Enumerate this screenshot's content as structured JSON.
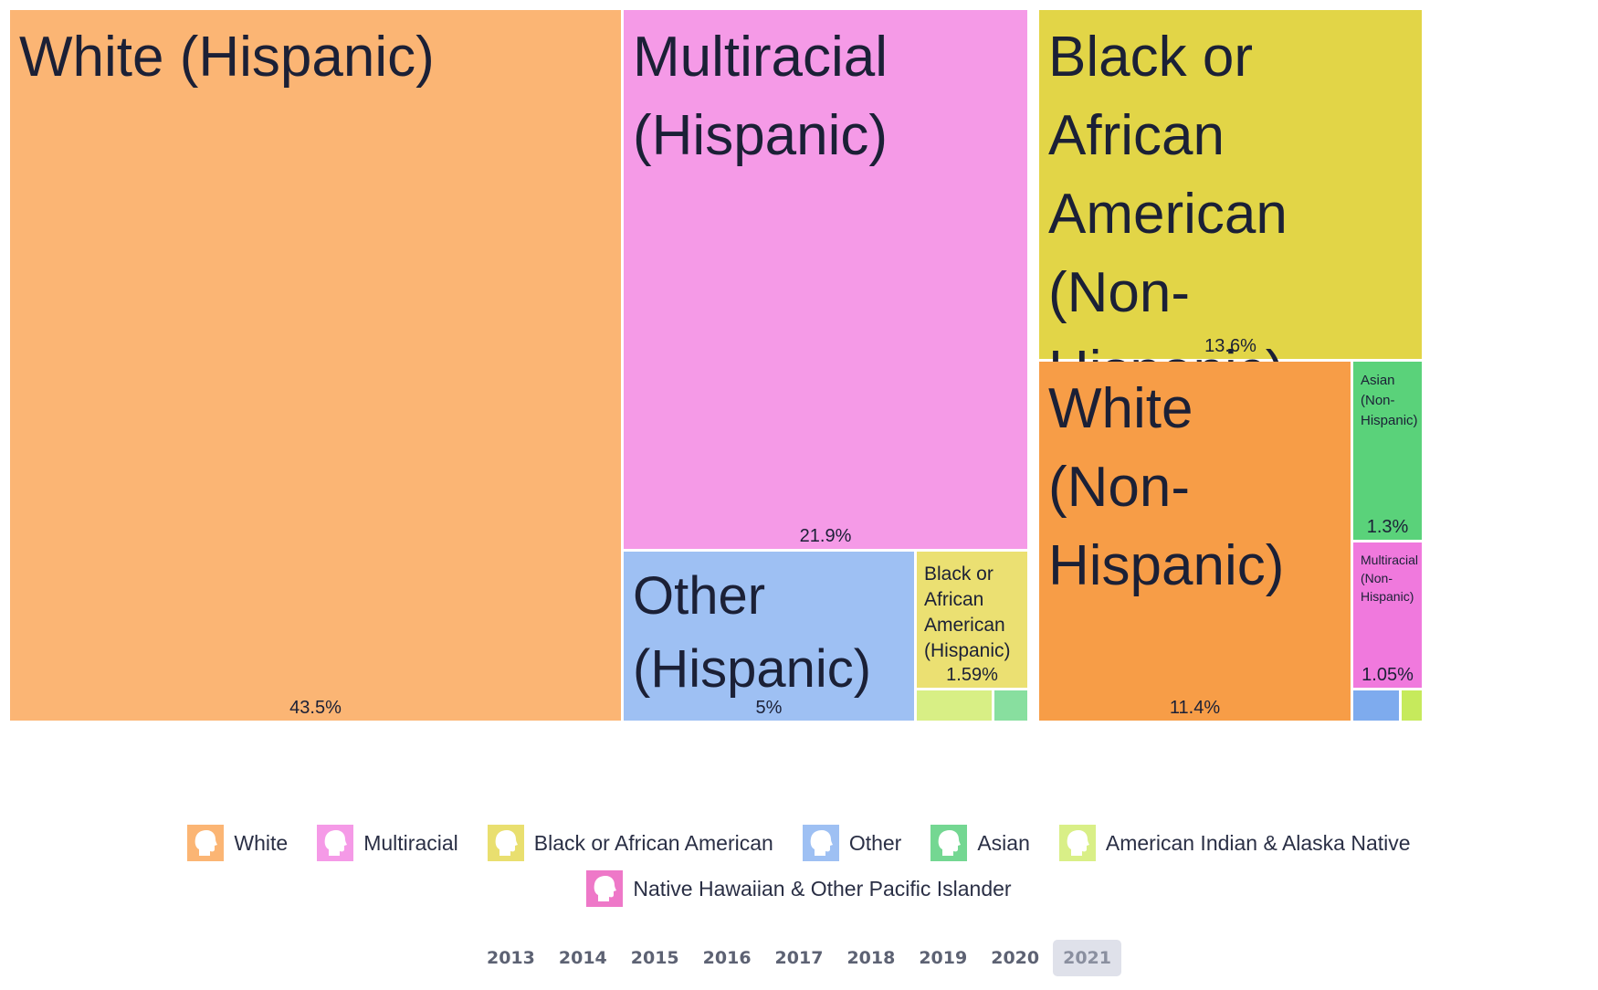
{
  "chart_data": {
    "type": "treemap",
    "unit": "%",
    "groups": [
      {
        "name": "Hispanic",
        "tiles": [
          {
            "label": "White (Hispanic)",
            "value": 43.5,
            "display": "43.5%",
            "category": "White"
          },
          {
            "label": "Multiracial (Hispanic)",
            "value": 21.9,
            "display": "21.9%",
            "category": "Multiracial"
          },
          {
            "label": "Other (Hispanic)",
            "value": 5.0,
            "display": "5%",
            "category": "Other"
          },
          {
            "label": "Black or African American (Hispanic)",
            "value": 1.59,
            "display": "1.59%",
            "category": "Black or African American"
          },
          {
            "label": "",
            "value": 0.5,
            "display": "",
            "category": "American Indian & Alaska Native"
          },
          {
            "label": "",
            "value": 0.25,
            "display": "",
            "category": "Asian"
          }
        ]
      },
      {
        "name": "Non-Hispanic",
        "tiles": [
          {
            "label": "Black or African American (Non-Hispanic)",
            "value": 13.6,
            "display": "13.6%",
            "category": "Black or African American"
          },
          {
            "label": "White (Non-Hispanic)",
            "value": 11.4,
            "display": "11.4%",
            "category": "White"
          },
          {
            "label": "Asian (Non-Hispanic)",
            "value": 1.3,
            "display": "1.3%",
            "category": "Asian"
          },
          {
            "label": "Multiracial (Non-Hispanic)",
            "value": 1.05,
            "display": "1.05%",
            "category": "Multiracial"
          },
          {
            "label": "",
            "value": 0.2,
            "display": "",
            "category": "Other"
          },
          {
            "label": "",
            "value": 0.1,
            "display": "",
            "category": "American Indian & Alaska Native"
          }
        ]
      }
    ]
  },
  "legend": {
    "rows": [
      [
        {
          "label": "White",
          "color": "#fbb574",
          "icon": "person-head-icon"
        },
        {
          "label": "Multiracial",
          "color": "#f59ae7",
          "icon": "person-head-icon"
        },
        {
          "label": "Black or African American",
          "color": "#e9df6f",
          "icon": "person-head-icon"
        },
        {
          "label": "Other",
          "color": "#9ec0f3",
          "icon": "person-head-icon"
        },
        {
          "label": "Asian",
          "color": "#74d792",
          "icon": "person-head-icon"
        },
        {
          "label": "American Indian & Alaska Native",
          "color": "#d9ef87",
          "icon": "person-head-icon"
        }
      ],
      [
        {
          "label": "Native Hawaiian & Other Pacific Islander",
          "color": "#ee78c8",
          "icon": "person-head-icon"
        }
      ]
    ]
  },
  "colors": {
    "tiles": {
      "White (Hispanic)": "#fbb574",
      "Multiracial (Hispanic)": "#f59ae7",
      "Other (Hispanic)": "#9ec0f3",
      "Black or African American (Hispanic)": "#ebe072",
      "Black or African American (Non-Hispanic)": "#e2d547",
      "White (Non-Hispanic)": "#f79d47",
      "Asian (Non-Hispanic)": "#5ad27a",
      "Multiracial (Non-Hispanic)": "#f079dd",
      "aian_hispanic": "#d8ef85",
      "asian_hispanic": "#88df9f",
      "other_nonhispanic": "#7eabee",
      "aian_nonhispanic": "#c6ea5c"
    },
    "text": "#1b2036"
  },
  "years": {
    "items": [
      "2013",
      "2014",
      "2015",
      "2016",
      "2017",
      "2018",
      "2019",
      "2020",
      "2021"
    ],
    "selected": "2021"
  }
}
